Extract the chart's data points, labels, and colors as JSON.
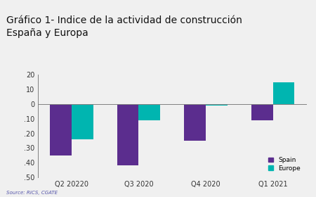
{
  "title": "Gráfico 1- Indice de la actividad de construcción\nEspaña y Europa",
  "categories": [
    "Q2 20220",
    "Q3 2020",
    "Q4 2020",
    "Q1 2021"
  ],
  "spain_values": [
    -35,
    -42,
    -25,
    -11
  ],
  "europe_values": [
    -24,
    -11,
    -1,
    15
  ],
  "spain_color": "#5b2d8e",
  "europe_color": "#00b5b0",
  "ylim": [
    -50,
    20
  ],
  "yticks": [
    -50,
    -40,
    -30,
    -20,
    -10,
    0,
    10,
    20
  ],
  "ytick_labels": [
    ".50",
    ".40",
    ".30",
    ".20",
    ".10",
    "0",
    "10",
    "20"
  ],
  "source_text": "Source: RICS, CGATE",
  "legend_spain": "Spain",
  "legend_europe": "Europe",
  "background_color": "#f0f0f0",
  "bar_width": 0.32,
  "title_fontsize": 10,
  "tick_fontsize": 7,
  "legend_fontsize": 6.5,
  "source_fontsize": 5,
  "source_color": "#5555aa"
}
